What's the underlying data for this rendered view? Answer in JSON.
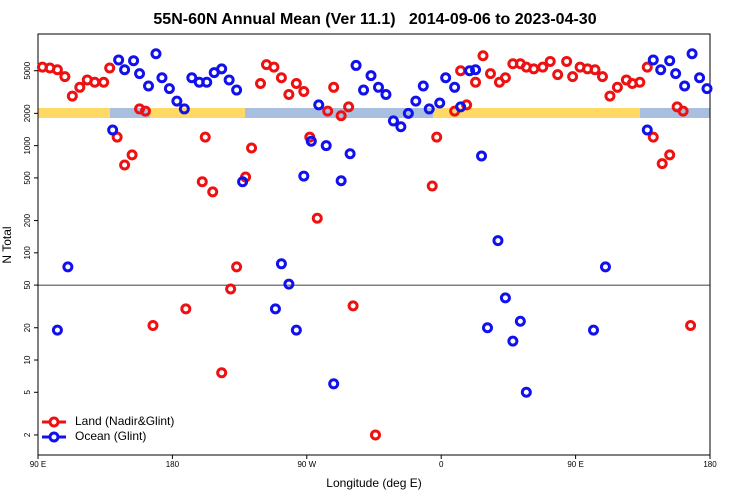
{
  "chart_data": {
    "type": "scatter",
    "title": "55N-60N Annual Mean (Ver 11.1)   2014-09-06 to 2023-04-30",
    "xlabel": "Longitude (deg E)",
    "ylabel": "N Total",
    "log_y": true,
    "legend": "lower left",
    "hline": 50,
    "xlim": [
      90,
      540
    ],
    "xticks": [
      {
        "value": 90,
        "label": "90 E"
      },
      180,
      {
        "value": 270,
        "label": "90 W"
      },
      {
        "value": 360,
        "label": "0"
      },
      {
        "value": 450,
        "label": "90 E"
      },
      {
        "value": 540,
        "label": "180"
      }
    ],
    "ylim": [
      1.3,
      11000
    ],
    "yticks": [
      2,
      5,
      10,
      20,
      50,
      100,
      200,
      500,
      1000,
      2000,
      5000
    ],
    "series": [
      {
        "name": "Land (Nadir&Glint)",
        "color": "#ee1111",
        "x": [
          93,
          98,
          103,
          108,
          113,
          118,
          123,
          128,
          134,
          138,
          143,
          148,
          153,
          158,
          162,
          167,
          189,
          200,
          202,
          207,
          213,
          219,
          223,
          229,
          233,
          239,
          243,
          248,
          253,
          258,
          263,
          268,
          272,
          277,
          284,
          288,
          293,
          298,
          301,
          316,
          354,
          357,
          369,
          373,
          377,
          383,
          388,
          393,
          399,
          403,
          408,
          413,
          417,
          422,
          428,
          433,
          438,
          444,
          448,
          453,
          458,
          463,
          468,
          473,
          478,
          484,
          488,
          493,
          498,
          502,
          508,
          513,
          518,
          522,
          527
        ],
        "values": [
          5400,
          5300,
          5100,
          4400,
          2900,
          3500,
          4100,
          3900,
          3900,
          5300,
          1200,
          660,
          820,
          2200,
          2100,
          21,
          30,
          460,
          1200,
          370,
          7.6,
          46,
          74,
          510,
          950,
          3800,
          5700,
          5400,
          4300,
          3000,
          3800,
          3200,
          1200,
          210,
          2100,
          3500,
          1900,
          2300,
          32,
          2,
          420,
          1200,
          2100,
          5000,
          2400,
          3900,
          6900,
          4700,
          3900,
          4300,
          5800,
          5800,
          5400,
          5200,
          5400,
          6100,
          4600,
          6100,
          4400,
          5400,
          5200,
          5100,
          4400,
          2900,
          3500,
          4100,
          3800,
          3900,
          5400,
          1200,
          680,
          820,
          2300,
          2100,
          21
        ]
      },
      {
        "name": "Ocean (Glint)",
        "color": "#1111ee",
        "x": [
          103,
          110,
          140,
          144,
          148,
          154,
          158,
          164,
          169,
          173,
          178,
          183,
          188,
          193,
          198,
          203,
          208,
          213,
          218,
          223,
          227,
          249,
          253,
          258,
          263,
          268,
          273,
          278,
          283,
          288,
          293,
          299,
          303,
          308,
          313,
          318,
          323,
          328,
          333,
          338,
          343,
          348,
          352,
          359,
          363,
          369,
          373,
          379,
          383,
          387,
          391,
          398,
          403,
          408,
          413,
          417,
          462,
          470,
          498,
          502,
          507,
          513,
          517,
          523,
          528,
          533,
          538
        ],
        "values": [
          19,
          74,
          1400,
          6300,
          5100,
          6200,
          4700,
          3600,
          7200,
          4300,
          3400,
          2600,
          2200,
          4300,
          3900,
          3900,
          4800,
          5200,
          4100,
          3300,
          460,
          30,
          79,
          51,
          19,
          520,
          1100,
          2400,
          1000,
          6,
          470,
          840,
          5600,
          3300,
          4500,
          3500,
          3000,
          1700,
          1500,
          2000,
          2600,
          3600,
          2200,
          2500,
          4300,
          3500,
          2300,
          5000,
          5100,
          800,
          20,
          130,
          38,
          15,
          23,
          5,
          19,
          74,
          1400,
          6300,
          5100,
          6200,
          4700,
          3600,
          7200,
          4300,
          3400
        ]
      }
    ]
  }
}
